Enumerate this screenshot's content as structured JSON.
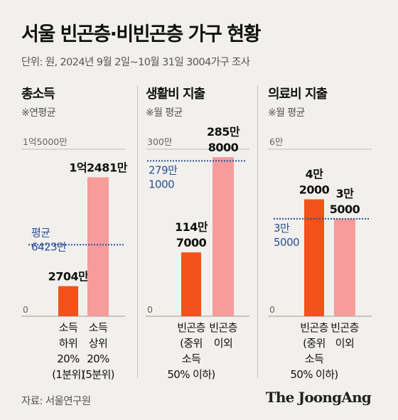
{
  "title": "서울 빈곤층·비빈곤층 가구 현황",
  "subtitle": "단위: 원, 2024년 9월 2일~10월 31일 3004가구 조사",
  "source": "자료: 서울연구원",
  "brand": "The JoongAng",
  "colors": {
    "dark_bar": "#f2521c",
    "light_bar": "#f89b9b",
    "avg_line": "#2a4f9a",
    "axis_label": "#666666",
    "value_label": "#111111"
  },
  "chart_data": [
    {
      "type": "bar",
      "title": "총소득",
      "note": "※연평균",
      "ylim": [
        0,
        150000000
      ],
      "ymax_label": "1억5000만",
      "zero_label": "0",
      "categories": [
        [
          "소득",
          "하위",
          "20%",
          "(1분위)"
        ],
        [
          "소득",
          "상위",
          "20%",
          "(5분위)"
        ]
      ],
      "values": [
        27040000,
        124810000
      ],
      "value_labels": [
        [
          "2704만"
        ],
        [
          "1억2481만"
        ]
      ],
      "average": {
        "value": 64230000,
        "label": [
          "평균",
          "6423만"
        ]
      }
    },
    {
      "type": "bar",
      "title": "생활비 지출",
      "note": "※월 평균",
      "ylim": [
        0,
        3000000
      ],
      "ymax_label": "300만",
      "zero_label": "0",
      "categories": [
        [
          "빈곤층",
          "(중위",
          "소득",
          "50% 이하)"
        ],
        [
          "빈곤층",
          "이외"
        ]
      ],
      "values": [
        1147000,
        2858000
      ],
      "value_labels": [
        [
          "114만",
          "7000"
        ],
        [
          "285만",
          "8000"
        ]
      ],
      "average": {
        "value": 2791000,
        "label": [
          "279만",
          "1000"
        ]
      }
    },
    {
      "type": "bar",
      "title": "의료비 지출",
      "note": "※월 평균",
      "ylim": [
        0,
        60000
      ],
      "ymax_label": "6만",
      "zero_label": "0",
      "categories": [
        [
          "빈곤층",
          "(중위",
          "소득",
          "50% 이하)"
        ],
        [
          "빈곤층",
          "이외"
        ]
      ],
      "values": [
        42000,
        35000
      ],
      "value_labels": [
        [
          "4만",
          "2000"
        ],
        [
          "3만",
          "5000"
        ]
      ],
      "average": {
        "value": 35000,
        "label": [
          "3만",
          "5000"
        ]
      }
    }
  ]
}
